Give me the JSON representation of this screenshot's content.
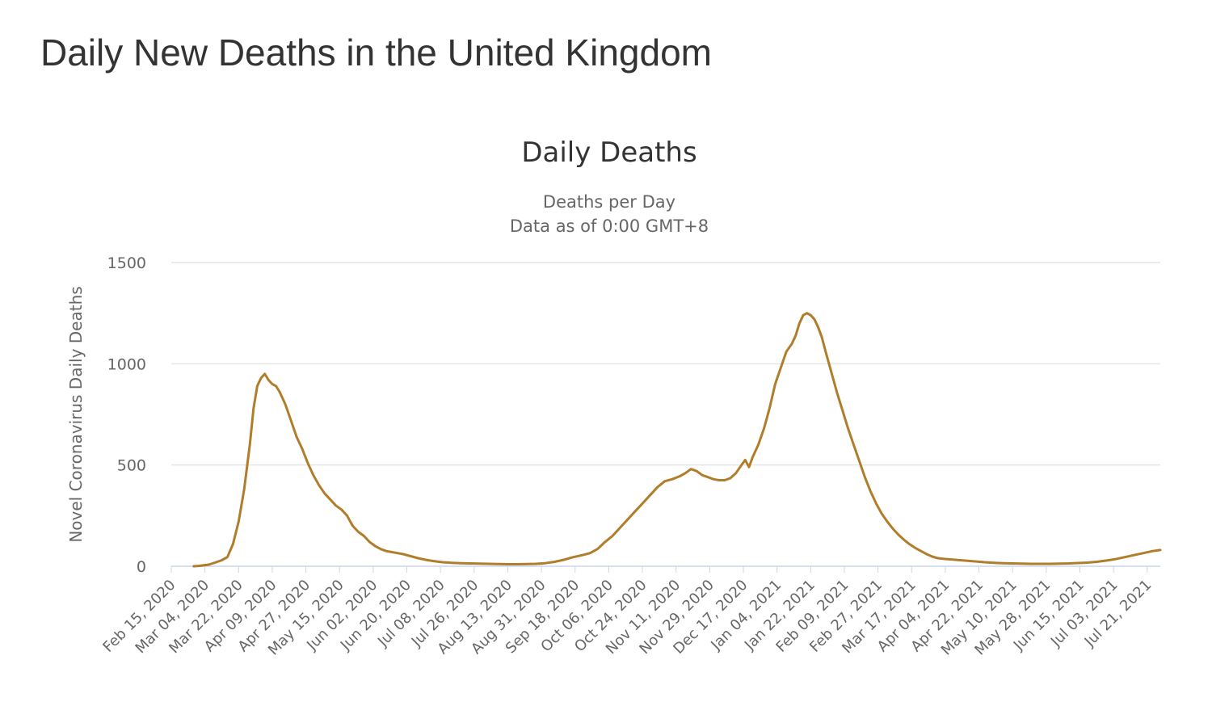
{
  "page": {
    "title": "Daily New Deaths in the United Kingdom"
  },
  "colors": {
    "line": "#B07D2B",
    "grid": "#e6e6e6",
    "baseline": "#ccd6eb",
    "text": "#666666",
    "title": "#333333"
  },
  "chart_data": {
    "type": "line",
    "title": "Daily Deaths",
    "subtitle_lines": [
      "Deaths per Day",
      "Data as of 0:00 GMT+8"
    ],
    "xlabel": "",
    "ylabel": "Novel Coronavirus Daily Deaths",
    "ylim": [
      0,
      1500
    ],
    "yticks": [
      0,
      500,
      1000,
      1500
    ],
    "grid": true,
    "legend": "none",
    "x_start": "Feb 15, 2020",
    "x_end": "Aug 01, 2021",
    "xtick_labels": [
      "Feb 15, 2020",
      "Mar 04, 2020",
      "Mar 22, 2020",
      "Apr 09, 2020",
      "Apr 27, 2020",
      "May 15, 2020",
      "Jun 02, 2020",
      "Jun 20, 2020",
      "Jul 08, 2020",
      "Jul 26, 2020",
      "Aug 13, 2020",
      "Aug 31, 2020",
      "Sep 18, 2020",
      "Oct 06, 2020",
      "Oct 24, 2020",
      "Nov 11, 2020",
      "Nov 29, 2020",
      "Dec 17, 2020",
      "Jan 04, 2021",
      "Jan 22, 2021",
      "Feb 09, 2021",
      "Feb 27, 2021",
      "Mar 17, 2021",
      "Apr 04, 2021",
      "Apr 22, 2021",
      "May 10, 2021",
      "May 28, 2021",
      "Jun 15, 2021",
      "Jul 03, 2021",
      "Jul 21, 2021"
    ],
    "series": [
      {
        "name": "Daily Deaths",
        "points": [
          [
            12,
            0
          ],
          [
            15,
            2
          ],
          [
            20,
            8
          ],
          [
            24,
            20
          ],
          [
            27,
            30
          ],
          [
            30,
            45
          ],
          [
            33,
            110
          ],
          [
            36,
            220
          ],
          [
            39,
            380
          ],
          [
            42,
            600
          ],
          [
            44,
            780
          ],
          [
            46,
            890
          ],
          [
            48,
            930
          ],
          [
            50,
            950
          ],
          [
            52,
            920
          ],
          [
            54,
            900
          ],
          [
            56,
            890
          ],
          [
            58,
            860
          ],
          [
            61,
            800
          ],
          [
            64,
            720
          ],
          [
            67,
            640
          ],
          [
            70,
            580
          ],
          [
            73,
            510
          ],
          [
            76,
            450
          ],
          [
            79,
            400
          ],
          [
            82,
            360
          ],
          [
            85,
            330
          ],
          [
            88,
            300
          ],
          [
            91,
            280
          ],
          [
            94,
            250
          ],
          [
            97,
            200
          ],
          [
            100,
            170
          ],
          [
            103,
            150
          ],
          [
            106,
            120
          ],
          [
            109,
            100
          ],
          [
            112,
            85
          ],
          [
            115,
            75
          ],
          [
            118,
            70
          ],
          [
            121,
            65
          ],
          [
            124,
            60
          ],
          [
            128,
            50
          ],
          [
            132,
            40
          ],
          [
            136,
            32
          ],
          [
            140,
            26
          ],
          [
            145,
            20
          ],
          [
            150,
            17
          ],
          [
            155,
            15
          ],
          [
            160,
            14
          ],
          [
            165,
            13
          ],
          [
            170,
            12
          ],
          [
            175,
            11
          ],
          [
            180,
            10
          ],
          [
            185,
            10
          ],
          [
            190,
            11
          ],
          [
            195,
            12
          ],
          [
            200,
            15
          ],
          [
            205,
            22
          ],
          [
            210,
            32
          ],
          [
            215,
            45
          ],
          [
            220,
            55
          ],
          [
            224,
            65
          ],
          [
            228,
            85
          ],
          [
            232,
            120
          ],
          [
            236,
            150
          ],
          [
            240,
            190
          ],
          [
            244,
            230
          ],
          [
            248,
            270
          ],
          [
            252,
            310
          ],
          [
            256,
            350
          ],
          [
            260,
            390
          ],
          [
            264,
            420
          ],
          [
            268,
            430
          ],
          [
            272,
            445
          ],
          [
            275,
            460
          ],
          [
            278,
            480
          ],
          [
            281,
            470
          ],
          [
            284,
            450
          ],
          [
            287,
            440
          ],
          [
            290,
            430
          ],
          [
            293,
            425
          ],
          [
            296,
            425
          ],
          [
            299,
            435
          ],
          [
            302,
            460
          ],
          [
            305,
            500
          ],
          [
            307,
            525
          ],
          [
            309,
            490
          ],
          [
            311,
            540
          ],
          [
            314,
            600
          ],
          [
            317,
            680
          ],
          [
            320,
            780
          ],
          [
            323,
            900
          ],
          [
            326,
            980
          ],
          [
            329,
            1060
          ],
          [
            332,
            1100
          ],
          [
            334,
            1140
          ],
          [
            336,
            1200
          ],
          [
            338,
            1240
          ],
          [
            340,
            1250
          ],
          [
            342,
            1240
          ],
          [
            344,
            1220
          ],
          [
            346,
            1180
          ],
          [
            348,
            1130
          ],
          [
            350,
            1060
          ],
          [
            353,
            960
          ],
          [
            356,
            860
          ],
          [
            359,
            770
          ],
          [
            362,
            680
          ],
          [
            365,
            600
          ],
          [
            368,
            520
          ],
          [
            371,
            440
          ],
          [
            374,
            370
          ],
          [
            377,
            310
          ],
          [
            380,
            260
          ],
          [
            383,
            220
          ],
          [
            386,
            185
          ],
          [
            389,
            155
          ],
          [
            392,
            130
          ],
          [
            395,
            108
          ],
          [
            398,
            90
          ],
          [
            401,
            75
          ],
          [
            404,
            60
          ],
          [
            407,
            48
          ],
          [
            410,
            40
          ],
          [
            414,
            36
          ],
          [
            418,
            33
          ],
          [
            422,
            30
          ],
          [
            426,
            27
          ],
          [
            430,
            24
          ],
          [
            435,
            20
          ],
          [
            440,
            17
          ],
          [
            445,
            15
          ],
          [
            450,
            14
          ],
          [
            455,
            13
          ],
          [
            460,
            12
          ],
          [
            465,
            12
          ],
          [
            470,
            12
          ],
          [
            475,
            13
          ],
          [
            480,
            14
          ],
          [
            485,
            16
          ],
          [
            490,
            18
          ],
          [
            495,
            22
          ],
          [
            500,
            28
          ],
          [
            505,
            35
          ],
          [
            510,
            45
          ],
          [
            515,
            55
          ],
          [
            520,
            65
          ],
          [
            525,
            75
          ],
          [
            529,
            80
          ]
        ]
      }
    ]
  }
}
